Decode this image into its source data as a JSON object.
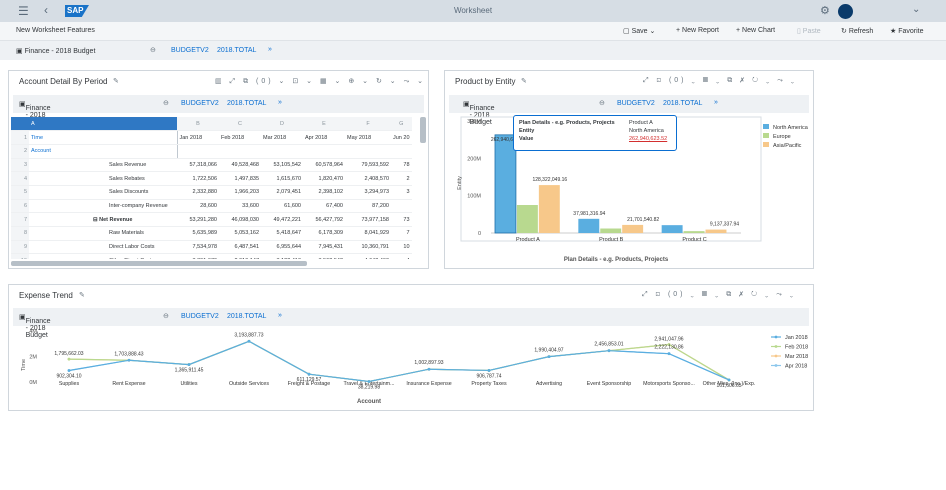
{
  "shell": {
    "logo": "SAP",
    "title": "Worksheet"
  },
  "toolbar": {
    "doc_title": "New Worksheet Features",
    "save": "Save",
    "new_report": "New Report",
    "new_chart": "New Chart",
    "paste": "Paste",
    "refresh": "Refresh",
    "favorite": "Favorite"
  },
  "context": {
    "model": "Finance - 2018 Budget",
    "version": "BUDGETV2",
    "account": "2018.TOTAL"
  },
  "panel1": {
    "title": "Account Detail By Period",
    "model": "Finance - 2018 Budget",
    "version": "BUDGETV2",
    "account": "2018.TOTAL",
    "columns": [
      "Jan 2018",
      "Feb 2018",
      "Mar 2018",
      "Apr 2018",
      "May 2018",
      "Jun 20"
    ],
    "letters": [
      "A",
      "B",
      "C",
      "D",
      "E",
      "F",
      "G"
    ],
    "rows": [
      {
        "label": "Time",
        "cells": [
          "Jan 2018",
          "Feb 2018",
          "Mar 2018",
          "Apr 2018",
          "May 2018",
          "Jun 20"
        ]
      },
      {
        "label": "Account",
        "cells": [
          "",
          "",
          "",
          "",
          "",
          ""
        ]
      },
      {
        "label": "Sales Revenue",
        "cells": [
          "57,318,066",
          "49,528,468",
          "53,105,542",
          "60,578,964",
          "79,593,592",
          "78"
        ]
      },
      {
        "label": "Sales Rebates",
        "cells": [
          "1,722,506",
          "1,497,835",
          "1,615,670",
          "1,820,470",
          "2,408,570",
          "2"
        ]
      },
      {
        "label": "Sales Discounts",
        "cells": [
          "2,332,880",
          "1,966,203",
          "2,079,451",
          "2,398,102",
          "3,294,973",
          "3"
        ]
      },
      {
        "label": "Inter-company Revenue",
        "cells": [
          "28,600",
          "33,600",
          "61,600",
          "67,400",
          "87,200",
          ""
        ]
      },
      {
        "label": "Net Revenue",
        "cells": [
          "53,291,280",
          "46,098,030",
          "49,472,221",
          "56,427,792",
          "73,977,158",
          "73"
        ]
      },
      {
        "label": "Raw Materials",
        "cells": [
          "5,635,989",
          "5,053,162",
          "5,418,647",
          "6,178,309",
          "8,041,929",
          "7"
        ]
      },
      {
        "label": "Direct Labor Costs",
        "cells": [
          "7,534,978",
          "6,487,541",
          "6,955,644",
          "7,945,431",
          "10,360,791",
          "10"
        ]
      },
      {
        "label": "Other Direct Costs",
        "cells": [
          "3,391,679",
          "2,919,147",
          "3,122,410",
          "3,562,542",
          "4,642,460",
          "4"
        ]
      }
    ],
    "icons": "(0)"
  },
  "panel2": {
    "title": "Product by Entity",
    "model": "Finance - 2018 Budget",
    "version": "BUDGETV2",
    "account": "2018.TOTAL",
    "tooltip": {
      "k1": "Plan Details - e.g. Products, Projects",
      "v1": "Product A",
      "k2": "Entity",
      "v2": "North America",
      "k3": "Value",
      "v3": "262,940,623.52"
    },
    "icons": "(0)"
  },
  "panel3": {
    "title": "Expense Trend",
    "model": "Finance - 2018 Budget",
    "version": "BUDGETV2",
    "account": "2018.TOTAL",
    "icons": "(0)"
  },
  "chart_data": [
    {
      "type": "bar",
      "xlabel": "Plan Details - e.g. Products, Projects",
      "ylabel": "Entity",
      "categories": [
        "Product A",
        "Product B",
        "Product C"
      ],
      "yticks": [
        "300M",
        "200M",
        "100M",
        "0"
      ],
      "ylim": [
        0,
        300000000
      ],
      "legend_position": "right",
      "series": [
        {
          "name": "North America",
          "color": "#5aaee0",
          "values": [
            262940623.52,
            37981316.94,
            21000000
          ]
        },
        {
          "name": "Europe",
          "color": "#b8d98f",
          "values": [
            75000000,
            12000000,
            5000000
          ]
        },
        {
          "name": "Asia/Pacific",
          "color": "#f7c88a",
          "values": [
            128322049.16,
            21701540.82,
            9137337.94
          ]
        }
      ],
      "data_labels": [
        "262,940,6",
        "128,322,049.16",
        "37,981,316.94",
        "21,701,540.82",
        "9,137,337.94"
      ]
    },
    {
      "type": "line",
      "xlabel": "Account",
      "ylabel": "Time",
      "categories": [
        "Supplies",
        "Rent Expense",
        "Utilities",
        "Outside Services",
        "Freight & Postage",
        "Travel & Entertainm...",
        "Insurance Expense",
        "Property Taxes",
        "Advertising",
        "Event Sponsorship",
        "Motorsports Sponso...",
        "Other Misc. (Inc.)/Exp."
      ],
      "yticks": [
        "4M",
        "2M",
        "0M"
      ],
      "ylim": [
        0,
        4000000
      ],
      "legend_position": "right",
      "series": [
        {
          "name": "Jan 2018",
          "color": "#5aaee0",
          "values": [
            902304.1,
            1703888.43,
            1365911.45,
            3193887.73,
            611129.57,
            38219.98,
            1002897.93,
            906787.74,
            1990404.97,
            2456853.01,
            2222130.86,
            161606.65
          ]
        },
        {
          "name": "Feb 2018",
          "color": "#b8d98f",
          "values": [
            1795662.03,
            1703888.43,
            1365911.45,
            3193887.73,
            611129.57,
            38219.98,
            1002897.93,
            906787.74,
            1990404.97,
            2456853.01,
            2941047.96,
            161606.65
          ]
        },
        {
          "name": "Mar 2018",
          "color": "#f7c88a",
          "values": [
            1795662.03,
            1703888.43,
            1365911.45,
            3193887.73,
            611129.57,
            38219.98,
            1002897.93,
            906787.74,
            1990404.97,
            2456853.01,
            2941047.96,
            161606.65
          ]
        },
        {
          "name": "Apr 2018",
          "color": "#8cc7ec",
          "values": [
            902304.1,
            1703888.43,
            1365911.45,
            3193887.73,
            611129.57,
            38219.98,
            1002897.93,
            906787.74,
            1990404.97,
            2456853.01,
            2222130.86,
            161606.65
          ]
        }
      ],
      "point_labels": [
        "902,304.10",
        "1,703,888.43",
        "1,365,911.45",
        "3,193,887.73",
        "611,129.57",
        "38,219.98",
        "1,002,897.93",
        "906,787.74",
        "1,990,404.97",
        "2,456,853.01",
        "2,222,130.86",
        "161,606.65"
      ],
      "extra_labels": [
        "1,795,662.03",
        "2,941,047.96"
      ]
    }
  ]
}
